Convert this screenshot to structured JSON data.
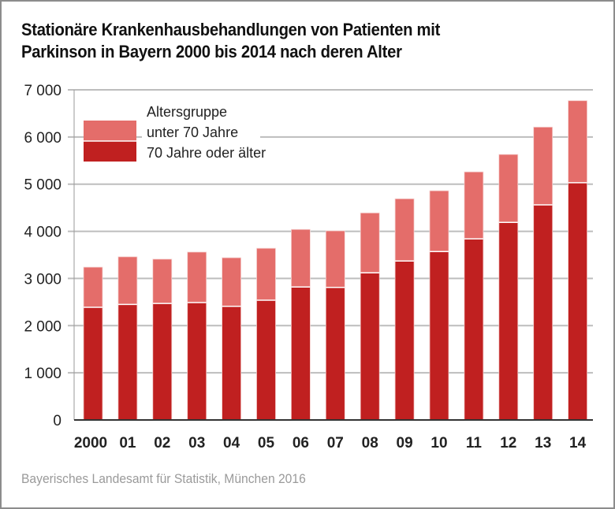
{
  "chart_data": {
    "type": "bar",
    "stacked": true,
    "title": "Stationäre Krankenhausbehandlungen von Patienten mit Parkinson in Bayern 2000 bis 2014 nach deren Alter",
    "title_lines": [
      "Stationäre Krankenhausbehandlungen von Patienten mit",
      "Parkinson in Bayern 2000 bis 2014 nach deren Alter"
    ],
    "xlabel": "",
    "ylabel": "",
    "categories": [
      "2000",
      "01",
      "02",
      "03",
      "04",
      "05",
      "06",
      "07",
      "08",
      "09",
      "10",
      "11",
      "12",
      "13",
      "14"
    ],
    "series": [
      {
        "name": "70 Jahre oder älter",
        "color": "#c02020",
        "values": [
          2390,
          2450,
          2470,
          2490,
          2410,
          2540,
          2820,
          2810,
          3120,
          3370,
          3570,
          3840,
          4190,
          4560,
          5030
        ]
      },
      {
        "name": "unter 70 Jahre",
        "color": "#e46d6a",
        "values": [
          850,
          1010,
          940,
          1070,
          1030,
          1100,
          1220,
          1200,
          1270,
          1320,
          1290,
          1420,
          1440,
          1650,
          1740
        ]
      }
    ],
    "ylim": [
      0,
      7000
    ],
    "yticks": [
      0,
      1000,
      2000,
      3000,
      4000,
      5000,
      6000,
      7000
    ],
    "ytick_labels": [
      "0",
      "1 000",
      "2 000",
      "3 000",
      "4 000",
      "5 000",
      "6 000",
      "7 000"
    ],
    "grid": true,
    "legend": {
      "title": "Altersgruppe",
      "position": "top-left",
      "entries": [
        "unter 70 Jahre",
        "70 Jahre oder älter"
      ]
    }
  },
  "source": "Bayerisches Landesamt für Statistik, München 2016",
  "colors": {
    "axis": "#333333",
    "grid": "#bdbdbd",
    "frame": "#8c8c8c"
  }
}
